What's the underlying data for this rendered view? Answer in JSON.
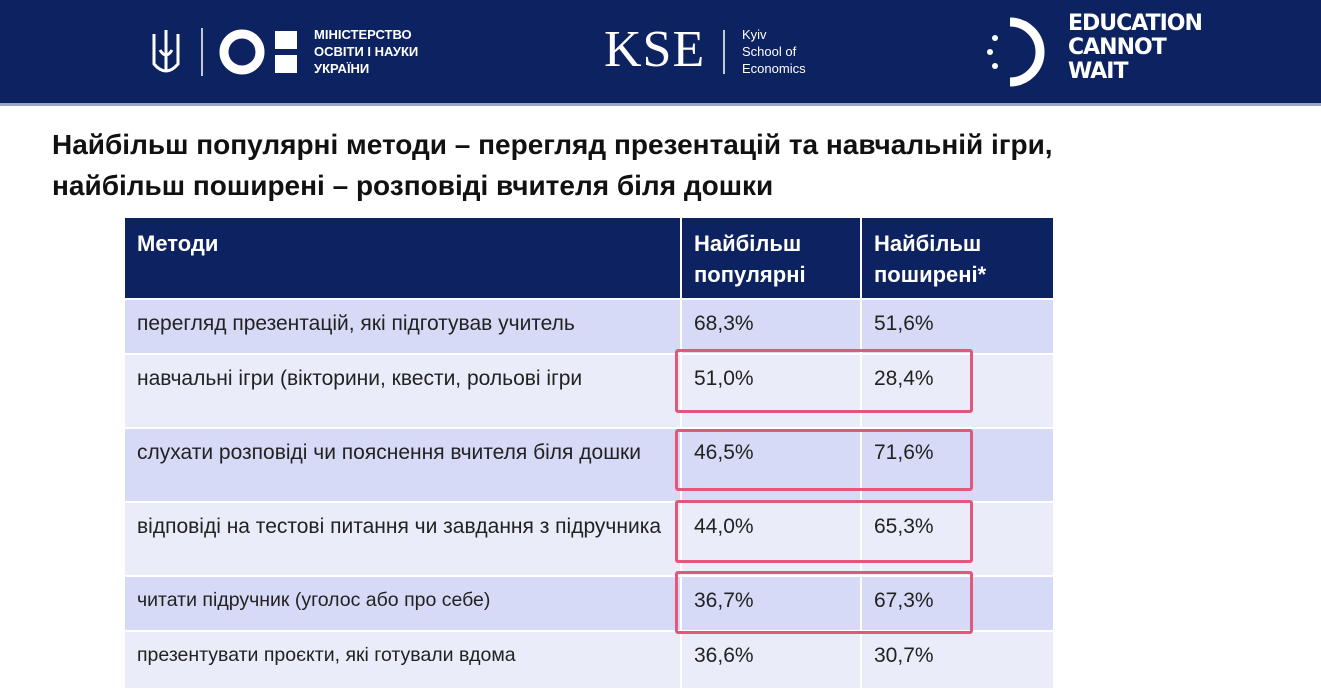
{
  "header": {
    "ministry": [
      "МІНІСТЕРСТВО",
      "ОСВІТИ І НАУКИ",
      "УКРАЇНИ"
    ],
    "kse": "KSE",
    "kse_sub": [
      "Kyiv",
      "School of",
      "Economics"
    ],
    "ecw": [
      "EDUCATION",
      "CANNOT",
      "WAIT"
    ]
  },
  "title": [
    "Найбільш популярні методи – перегляд презентацій та навчальній ігри,",
    "найбільш поширені – розповіді вчителя біля дошки"
  ],
  "table": {
    "columns": [
      "Методи",
      "Найбільш популярні",
      "Найбільш поширені*"
    ],
    "rows": [
      [
        "перегляд презентацій, які підготував учитель",
        "68,3%",
        "51,6%"
      ],
      [
        "навчальні ігри (вікторини, квести, рольові ігри",
        "51,0%",
        "28,4%"
      ],
      [
        "слухати розповіді чи пояснення вчителя біля дошки",
        "46,5%",
        "71,6%"
      ],
      [
        "відповіді на тестові питання чи завдання з підручника",
        "44,0%",
        "65,3%"
      ],
      [
        "читати підручник (уголос або про себе)",
        "36,7%",
        "67,3%"
      ],
      [
        "презентувати проєкти, які готували вдома",
        "36,6%",
        "30,7%"
      ]
    ]
  }
}
